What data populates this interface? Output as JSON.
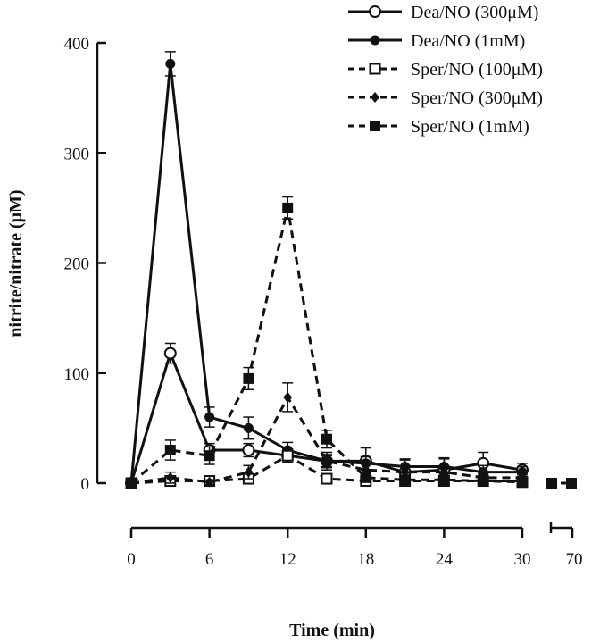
{
  "chart_data": {
    "type": "line",
    "xlabel": "Time (min)",
    "ylabel": "nitrite/nitrate (μM)",
    "ylim": [
      0,
      400
    ],
    "xlim": [
      0,
      30
    ],
    "x_ticks": [
      "0",
      "6",
      "12",
      "18",
      "24",
      "30"
    ],
    "x_break_tick": "70",
    "y_ticks": [
      "0",
      "100",
      "200",
      "300",
      "400"
    ],
    "legend_position": "top-right",
    "grid": false,
    "series": [
      {
        "name": "Dea/NO  (300μM)",
        "line": "solid",
        "marker": "open-circle",
        "color": "#111111",
        "x": [
          0,
          3,
          6,
          9,
          12,
          15,
          18,
          21,
          24,
          27,
          30
        ],
        "y": [
          0,
          118,
          30,
          30,
          25,
          20,
          20,
          10,
          12,
          18,
          12
        ],
        "err": [
          0,
          9,
          6,
          6,
          6,
          5,
          12,
          12,
          10,
          10,
          6
        ]
      },
      {
        "name": "Dea/NO  (1mM)",
        "line": "solid",
        "marker": "filled-circle",
        "color": "#111111",
        "x": [
          0,
          3,
          6,
          9,
          12,
          15,
          18,
          21,
          24,
          27,
          30
        ],
        "y": [
          0,
          381,
          60,
          50,
          30,
          20,
          18,
          15,
          15,
          10,
          10
        ],
        "err": [
          0,
          11,
          9,
          10,
          7,
          6,
          6,
          6,
          8,
          6,
          5
        ]
      },
      {
        "name": "Sper/NO (100μM)",
        "line": "dashed",
        "marker": "open-square",
        "color": "#111111",
        "x": [
          0,
          3,
          6,
          9,
          12,
          15,
          18,
          21,
          24,
          27,
          30
        ],
        "y": [
          0,
          2,
          2,
          4,
          25,
          4,
          2,
          2,
          2,
          2,
          1
        ],
        "err": [
          0,
          2,
          2,
          3,
          6,
          2,
          2,
          2,
          2,
          2,
          1
        ]
      },
      {
        "name": "Sper/NO (300μM)",
        "line": "dashed",
        "marker": "filled-diamond",
        "color": "#111111",
        "x": [
          0,
          3,
          6,
          9,
          12,
          15,
          18,
          21,
          24,
          27,
          30
        ],
        "y": [
          0,
          5,
          1,
          10,
          78,
          20,
          12,
          10,
          10,
          5,
          5
        ],
        "err": [
          0,
          5,
          2,
          6,
          13,
          8,
          7,
          6,
          6,
          4,
          3
        ]
      },
      {
        "name": "Sper/NO (1mM)",
        "line": "dashed",
        "marker": "filled-square",
        "color": "#111111",
        "x": [
          0,
          3,
          6,
          9,
          12,
          15,
          18,
          21,
          24,
          27,
          30
        ],
        "y": [
          0,
          30,
          25,
          95,
          250,
          40,
          5,
          3,
          3,
          2,
          2
        ],
        "err": [
          0,
          9,
          8,
          10,
          10,
          8,
          3,
          3,
          3,
          2,
          2
        ],
        "late_points": {
          "y": [
            0,
            0
          ]
        }
      }
    ]
  }
}
